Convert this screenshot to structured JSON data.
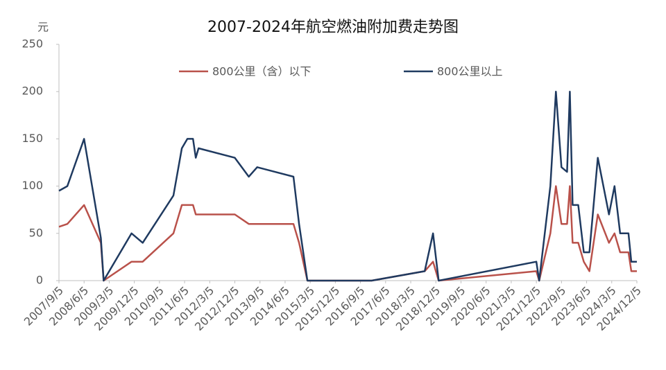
{
  "chart_data": {
    "type": "line",
    "title": "2007-2024年航空燃油附加费走势图",
    "y_label": "元",
    "x": [
      "2007/9/5",
      "2007/12/5",
      "2008/6/5",
      "2008/12/5",
      "2009/1/5",
      "2009/11/5",
      "2010/3/5",
      "2011/2/5",
      "2011/5/5",
      "2011/7/5",
      "2011/9/5",
      "2011/10/5",
      "2011/11/5",
      "2012/12/5",
      "2013/5/5",
      "2013/8/5",
      "2014/9/5",
      "2014/11/5",
      "2015/2/5",
      "2017/1/5",
      "2018/8/5",
      "2018/11/5",
      "2019/1/5",
      "2021/12/5",
      "2022/1/5",
      "2022/5/5",
      "2022/7/5",
      "2022/9/5",
      "2022/11/5",
      "2022/12/5",
      "2023/1/5",
      "2023/3/5",
      "2023/5/5",
      "2023/7/5",
      "2023/10/5",
      "2024/2/5",
      "2024/4/5",
      "2024/6/5",
      "2024/9/5",
      "2024/10/5",
      "2024/12/5"
    ],
    "series": [
      {
        "name": "800公里（含）以下",
        "color": "#b9514a",
        "values": [
          57,
          60,
          80,
          40,
          0,
          20,
          20,
          50,
          80,
          80,
          80,
          70,
          70,
          70,
          60,
          60,
          60,
          40,
          0,
          0,
          10,
          20,
          0,
          10,
          0,
          50,
          100,
          60,
          60,
          100,
          40,
          40,
          20,
          10,
          70,
          40,
          50,
          30,
          30,
          10,
          10
        ]
      },
      {
        "name": "800公里以上",
        "color": "#1f3a60",
        "values": [
          95,
          100,
          150,
          45,
          0,
          50,
          40,
          90,
          140,
          150,
          150,
          130,
          140,
          130,
          110,
          120,
          110,
          60,
          0,
          0,
          10,
          50,
          0,
          20,
          0,
          100,
          200,
          120,
          115,
          200,
          80,
          80,
          30,
          30,
          130,
          70,
          100,
          50,
          50,
          20,
          20
        ]
      }
    ],
    "xlim": [
      "2007/9/5",
      "2024/12/5"
    ],
    "xticks": [
      "2007/9/5",
      "2008/6/5",
      "2009/3/5",
      "2009/12/5",
      "2010/9/5",
      "2011/6/5",
      "2012/3/5",
      "2012/12/5",
      "2013/9/5",
      "2014/6/5",
      "2015/3/5",
      "2015/12/5",
      "2016/9/5",
      "2017/6/5",
      "2018/3/5",
      "2018/12/5",
      "2019/9/5",
      "2020/6/5",
      "2021/3/5",
      "2021/12/5",
      "2022/9/5",
      "2023/6/5",
      "2024/3/5",
      "2024/12/5"
    ],
    "ylim": [
      0,
      250
    ],
    "yticks": [
      0,
      50,
      100,
      150,
      200,
      250
    ],
    "grid": false
  }
}
